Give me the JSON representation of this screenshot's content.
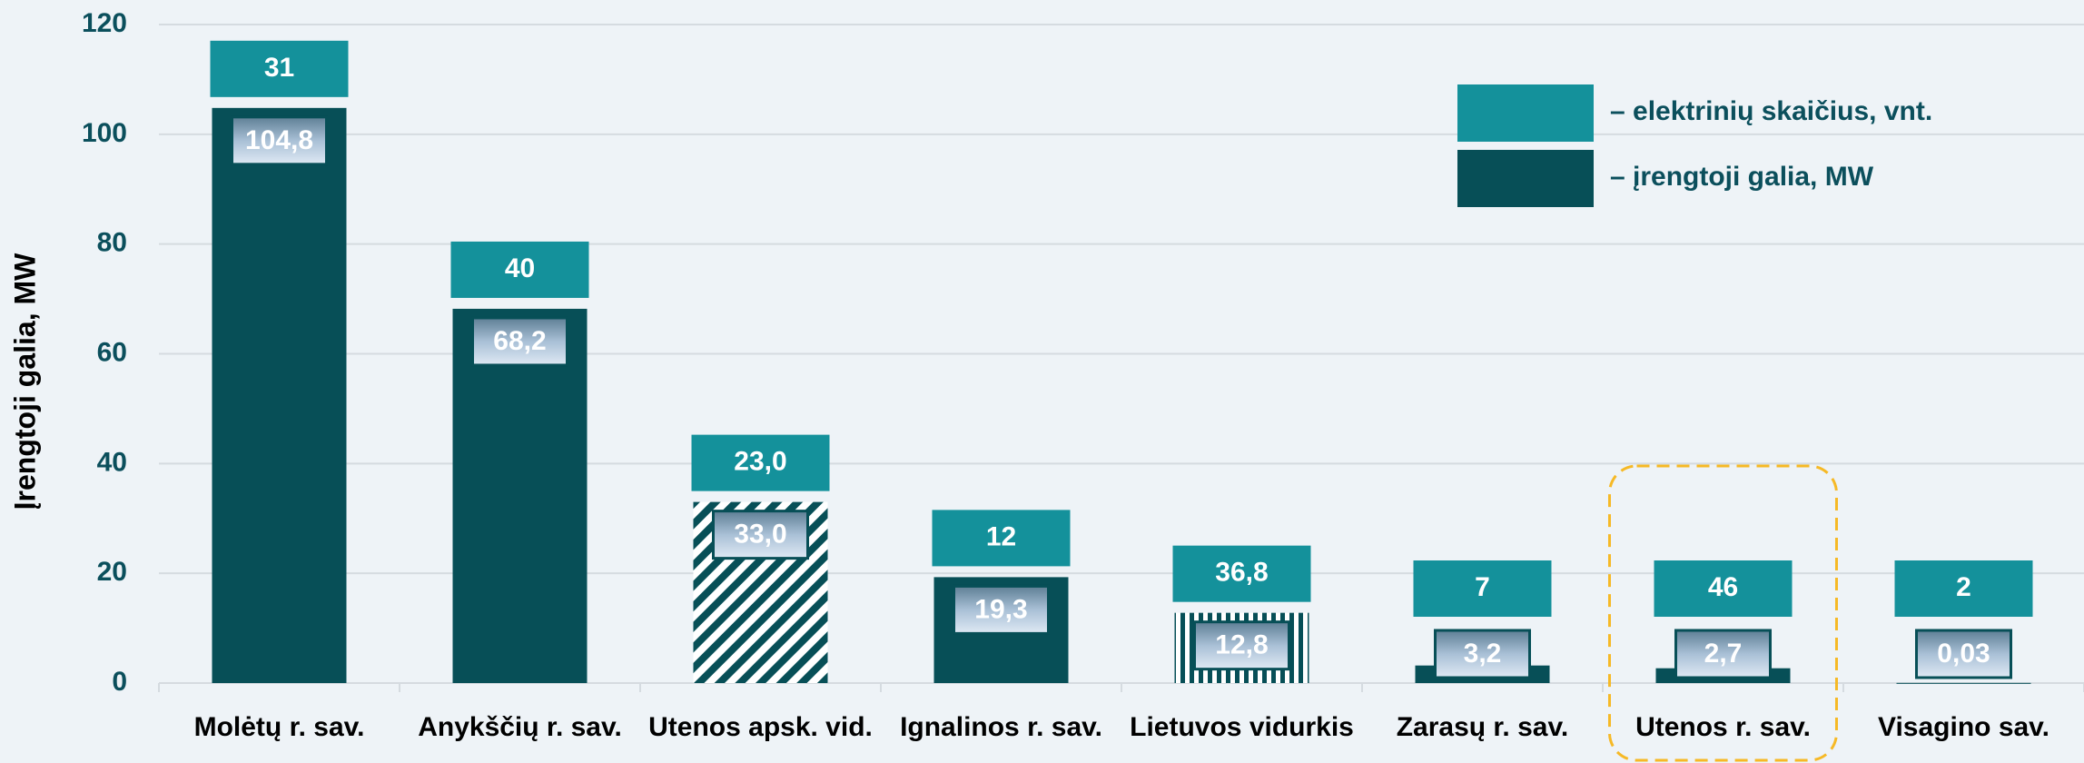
{
  "chart_data": {
    "type": "bar",
    "ylabel": "Įrengtoji galia, MW",
    "categories": [
      "Molėtų r. sav.",
      "Anykščių r. sav.",
      "Utenos apsk. vid.",
      "Ignalinos r. sav.",
      "Lietuvos vidurkis",
      "Zarasų r. sav.",
      "Utenos r. sav.",
      "Visagino sav."
    ],
    "series": [
      {
        "name": "– įrengtoji galia, MW",
        "color": "#074f57",
        "values": [
          104.8,
          68.2,
          33.0,
          19.3,
          12.8,
          3.2,
          2.7,
          0.03
        ],
        "value_labels": [
          "104,8",
          "68,2",
          "33,0",
          "19,3",
          "12,8",
          "3,2",
          "2,7",
          "0,03"
        ],
        "patterns": [
          null,
          null,
          "diagonal",
          null,
          "vertical",
          null,
          null,
          null
        ]
      },
      {
        "name": "– elektrinių skaičius, vnt.",
        "color": "#14919b",
        "values": [
          31,
          40,
          23.0,
          12,
          36.8,
          7,
          46,
          2
        ],
        "value_labels": [
          "31",
          "40",
          "23,0",
          "12",
          "36,8",
          "7",
          "46",
          "2"
        ]
      }
    ],
    "highlight": 6,
    "ylim": [
      0,
      120
    ],
    "yticks": [
      0,
      20,
      40,
      60,
      80,
      100,
      120
    ],
    "grid": true
  }
}
